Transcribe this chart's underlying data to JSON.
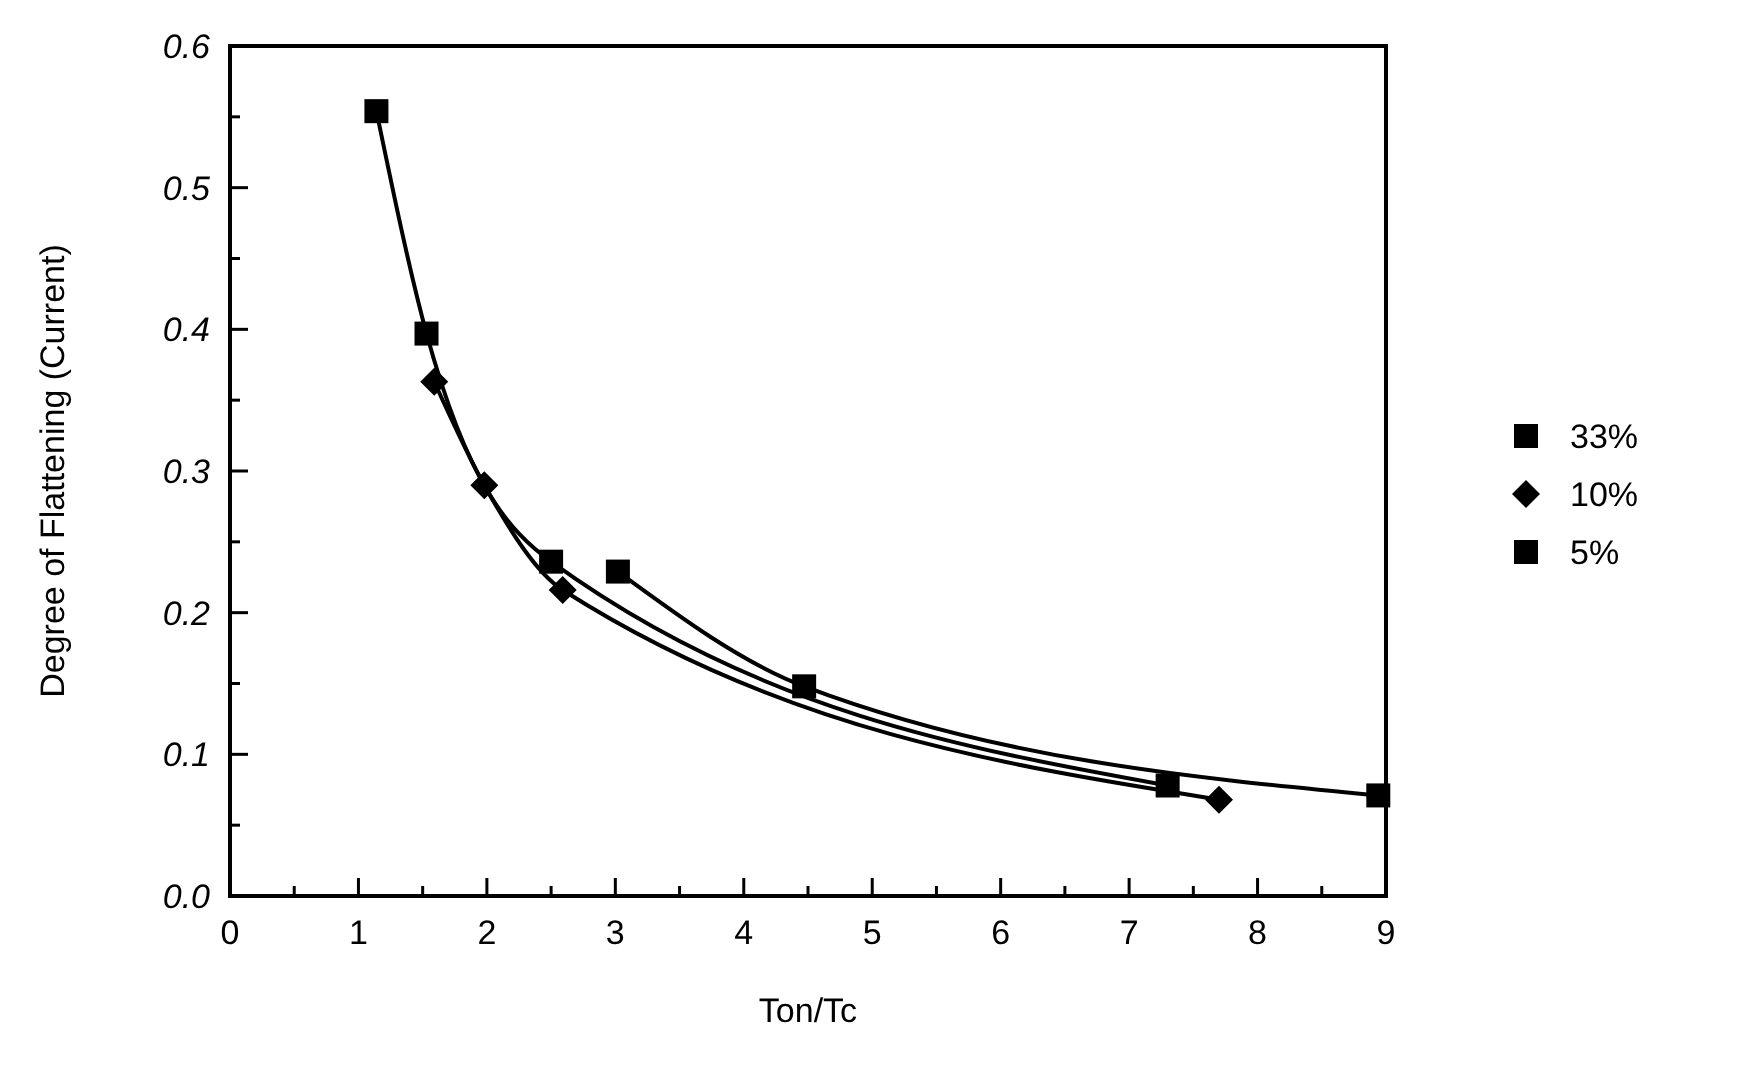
{
  "chart_data": {
    "type": "line",
    "xlabel": "Ton/Tc",
    "ylabel": "Degree of Flattening (Current)",
    "xlim": [
      0,
      9
    ],
    "ylim": [
      0,
      0.6
    ],
    "xticks": [
      0,
      {
        "value": 0.5,
        "label": null
      },
      1,
      {
        "value": 1.5,
        "label": null
      },
      2,
      {
        "value": 2.5,
        "label": null
      },
      3,
      {
        "value": 3.5,
        "label": null
      },
      4,
      {
        "value": 4.5,
        "label": null
      },
      5,
      {
        "value": 5.5,
        "label": null
      },
      6,
      {
        "value": 6.5,
        "label": null
      },
      7,
      {
        "value": 7.5,
        "label": null
      },
      8,
      {
        "value": 8.5,
        "label": null
      },
      9
    ],
    "yticks": [
      {
        "value": 0,
        "label": "0.0"
      },
      {
        "value": 0.05,
        "label": null
      },
      0.1,
      {
        "value": 0.15,
        "label": null
      },
      0.2,
      {
        "value": 0.25,
        "label": null
      },
      0.3,
      {
        "value": 0.35,
        "label": null
      },
      0.4,
      {
        "value": 0.45,
        "label": null
      },
      0.5,
      {
        "value": 0.55,
        "label": null
      },
      0.6
    ],
    "grid": false,
    "legend": "right",
    "line_style": "solid",
    "series": [
      {
        "name": "33%",
        "color": "#000000",
        "marker": "square",
        "x": [
          3.02,
          4.47,
          8.94
        ],
        "values": [
          0.229,
          0.148,
          0.071
        ]
      },
      {
        "name": "10%",
        "color": "#000000",
        "marker": "diamond",
        "x": [
          1.59,
          1.98,
          2.59,
          7.7
        ],
        "values": [
          0.363,
          0.29,
          0.216,
          0.068
        ]
      },
      {
        "name": "5%",
        "color": "#000000",
        "marker": "square",
        "x": [
          1.14,
          1.53,
          2.5,
          7.3
        ],
        "values": [
          0.554,
          0.397,
          0.236,
          0.078
        ]
      }
    ]
  }
}
